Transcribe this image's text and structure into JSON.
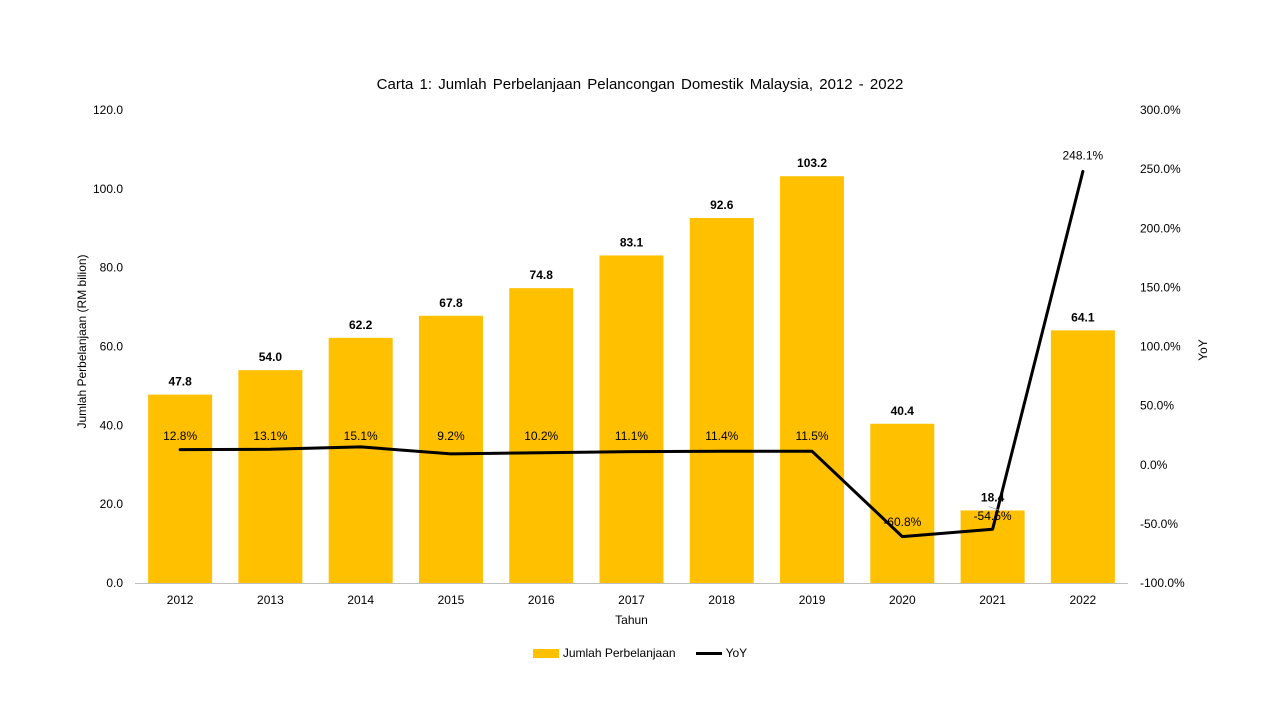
{
  "chart_data": {
    "type": "bar+line",
    "title": "Carta 1: Jumlah Perbelanjaan Pelancongan Domestik Malaysia, 2012 - 2022",
    "xlabel": "Tahun",
    "ylabel": "Jumlah Perbelanjaan (RM bilion)",
    "y2label": "YoY",
    "categories": [
      "2012",
      "2013",
      "2014",
      "2015",
      "2016",
      "2017",
      "2018",
      "2019",
      "2020",
      "2021",
      "2022"
    ],
    "series": [
      {
        "name": "Jumlah Perbelanjaan",
        "type": "bar",
        "axis": "left",
        "color": "#FFC000",
        "values": [
          47.8,
          54.0,
          62.2,
          67.8,
          74.8,
          83.1,
          92.6,
          103.2,
          40.4,
          18.4,
          64.1
        ],
        "labels": [
          "47.8",
          "54.0",
          "62.2",
          "67.8",
          "74.8",
          "83.1",
          "92.6",
          "103.2",
          "40.4",
          "18.4",
          "64.1"
        ]
      },
      {
        "name": "YoY",
        "type": "line",
        "axis": "right",
        "color": "#000000",
        "values": [
          12.8,
          13.1,
          15.1,
          9.2,
          10.2,
          11.1,
          11.4,
          11.5,
          -60.8,
          -54.5,
          248.1
        ],
        "labels": [
          "12.8%",
          "13.1%",
          "15.1%",
          "9.2%",
          "10.2%",
          "11.1%",
          "11.4%",
          "11.5%",
          "-60.8%",
          "-54.5%",
          "248.1%"
        ]
      }
    ],
    "ylim": [
      0,
      120
    ],
    "y2lim": [
      -100,
      300
    ],
    "yticks": [
      "0.0",
      "20.0",
      "40.0",
      "60.0",
      "80.0",
      "100.0",
      "120.0"
    ],
    "y2ticks": [
      "-100.0%",
      "-50.0%",
      "0.0%",
      "50.0%",
      "100.0%",
      "150.0%",
      "200.0%",
      "250.0%",
      "300.0%"
    ],
    "grid": false,
    "legend_position": "bottom"
  }
}
